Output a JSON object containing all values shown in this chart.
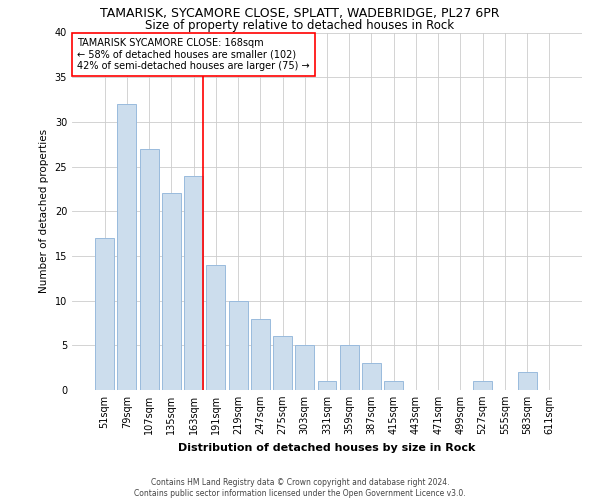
{
  "title": "TAMARISK, SYCAMORE CLOSE, SPLATT, WADEBRIDGE, PL27 6PR",
  "subtitle": "Size of property relative to detached houses in Rock",
  "xlabel": "Distribution of detached houses by size in Rock",
  "ylabel": "Number of detached properties",
  "categories": [
    "51sqm",
    "79sqm",
    "107sqm",
    "135sqm",
    "163sqm",
    "191sqm",
    "219sqm",
    "247sqm",
    "275sqm",
    "303sqm",
    "331sqm",
    "359sqm",
    "387sqm",
    "415sqm",
    "443sqm",
    "471sqm",
    "499sqm",
    "527sqm",
    "555sqm",
    "583sqm",
    "611sqm"
  ],
  "values": [
    17,
    32,
    27,
    22,
    24,
    14,
    10,
    8,
    6,
    5,
    1,
    5,
    3,
    1,
    0,
    0,
    0,
    1,
    0,
    2,
    0
  ],
  "bar_color": "#ccdded",
  "bar_edge_color": "#99bbdd",
  "grid_color": "#cccccc",
  "background_color": "#ffffff",
  "vline_color": "red",
  "annotation_text": "TAMARISK SYCAMORE CLOSE: 168sqm\n← 58% of detached houses are smaller (102)\n42% of semi-detached houses are larger (75) →",
  "annotation_box_color": "white",
  "annotation_box_edge": "red",
  "ylim": [
    0,
    40
  ],
  "yticks": [
    0,
    5,
    10,
    15,
    20,
    25,
    30,
    35,
    40
  ],
  "footer": "Contains HM Land Registry data © Crown copyright and database right 2024.\nContains public sector information licensed under the Open Government Licence v3.0.",
  "title_fontsize": 9,
  "subtitle_fontsize": 8.5,
  "xlabel_fontsize": 8,
  "ylabel_fontsize": 7.5,
  "tick_fontsize": 7,
  "annotation_fontsize": 7,
  "footer_fontsize": 5.5
}
